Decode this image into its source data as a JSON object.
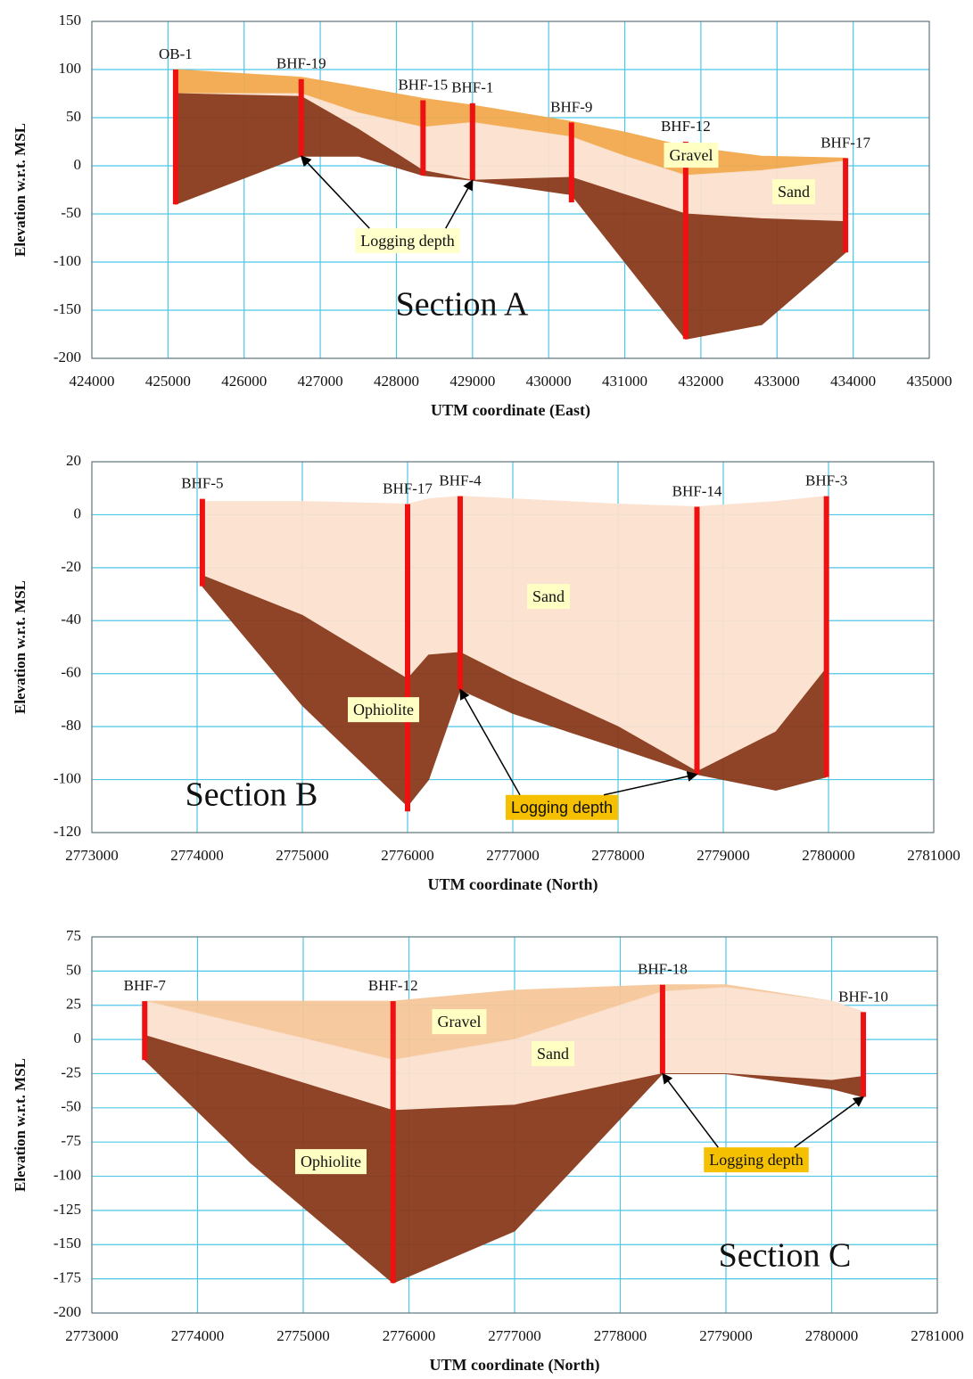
{
  "chart_data": [
    {
      "type": "section",
      "title": "Section A",
      "xlabel": "UTM coordinate (East)",
      "ylabel": "Elevation w.r.t. MSL",
      "xlim": [
        424000,
        435000
      ],
      "ylim": [
        -200,
        150
      ],
      "xticks": [
        424000,
        425000,
        426000,
        427000,
        428000,
        429000,
        430000,
        431000,
        432000,
        433000,
        434000,
        435000
      ],
      "yticks": [
        150,
        100,
        50,
        0,
        -50,
        -100,
        -150,
        -200
      ],
      "grid": true,
      "boreholes": {
        "color": "#ee1111",
        "names": [
          "OB-1",
          "BHF-19",
          "BHF-15",
          "BHF-1",
          "BHF-9",
          "BHF-12",
          "BHF-17"
        ],
        "x": [
          425100,
          426750,
          428350,
          429000,
          430300,
          431800,
          433900
        ],
        "top": [
          100,
          90,
          68,
          65,
          45,
          25,
          8
        ],
        "bottom": [
          -40,
          10,
          -10,
          -15,
          -38,
          -180,
          -90
        ]
      },
      "layers": [
        {
          "label": "Gravel",
          "color": "#f2a94e",
          "x": [
            425100,
            426750,
            427500,
            428350,
            429000,
            430300,
            431000,
            431800,
            432800,
            433900
          ],
          "top": [
            100,
            92,
            82,
            70,
            63,
            46,
            35,
            20,
            10,
            8
          ],
          "bottom": [
            75,
            75,
            55,
            40,
            45,
            30,
            10,
            -10,
            -5,
            5
          ]
        },
        {
          "label": "Sand",
          "color": "#fbe1cf",
          "x": [
            425100,
            426750,
            427500,
            428350,
            429000,
            430300,
            431000,
            431800,
            432800,
            433900
          ],
          "top": [
            75,
            75,
            55,
            40,
            45,
            30,
            10,
            -10,
            -5,
            5
          ],
          "bottom": [
            75,
            72,
            38,
            -5,
            -15,
            -12,
            -30,
            -50,
            -55,
            -58
          ]
        },
        {
          "color": "#8a3a1c",
          "x": [
            425100,
            426750,
            427500,
            428350,
            429000,
            430300,
            431000,
            431800,
            432800,
            433900
          ],
          "top": [
            75,
            72,
            38,
            -5,
            -15,
            -12,
            -30,
            -50,
            -55,
            -58
          ],
          "bottom": [
            -40,
            10,
            10,
            -10,
            -15,
            -30,
            -100,
            -180,
            -165,
            -90
          ]
        }
      ],
      "note": "Logging depth"
    },
    {
      "type": "section",
      "title": "Section B",
      "xlabel": "UTM coordinate (North)",
      "ylabel": "Elevation w.r.t. MSL",
      "xlim": [
        2773000,
        2781000
      ],
      "ylim": [
        -120,
        20
      ],
      "xticks": [
        2773000,
        2774000,
        2775000,
        2776000,
        2777000,
        2778000,
        2779000,
        2780000,
        2781000
      ],
      "yticks": [
        20,
        0,
        -20,
        -40,
        -60,
        -80,
        -100,
        -120
      ],
      "grid": true,
      "boreholes": {
        "color": "#ee1111",
        "names": [
          "BHF-5",
          "BHF-17",
          "BHF-4",
          "BHF-14",
          "BHF-3"
        ],
        "x": [
          2774050,
          2776000,
          2776500,
          2778750,
          2779980
        ],
        "top": [
          6,
          4,
          7,
          3,
          7
        ],
        "bottom": [
          -27,
          -112,
          -66,
          -98,
          -99
        ]
      },
      "layers": [
        {
          "label": "Sand",
          "color": "#fbe1cf",
          "x": [
            2774050,
            2775000,
            2776000,
            2776200,
            2776500,
            2777000,
            2778000,
            2778750,
            2779500,
            2779980
          ],
          "top": [
            5,
            5,
            4,
            6,
            7,
            6,
            4,
            3,
            5,
            7
          ],
          "bottom": [
            -23,
            -38,
            -62,
            -53,
            -52,
            -62,
            -80,
            -97,
            -82,
            -58
          ]
        },
        {
          "label": "Ophiolite",
          "color": "#8a3a1c",
          "x": [
            2774050,
            2775000,
            2776000,
            2776200,
            2776500,
            2777000,
            2778000,
            2778750,
            2779500,
            2779980
          ],
          "top": [
            -23,
            -38,
            -62,
            -53,
            -52,
            -62,
            -80,
            -97,
            -82,
            -58
          ],
          "bottom": [
            -27,
            -72,
            -110,
            -100,
            -66,
            -75,
            -88,
            -98,
            -104,
            -99
          ]
        }
      ],
      "note": "Logging depth"
    },
    {
      "type": "section",
      "title": "Section C",
      "xlabel": "UTM coordinate (North)",
      "ylabel": "Elevation w.r.t. MSL",
      "xlim": [
        2773000,
        2781000
      ],
      "ylim": [
        -200,
        75
      ],
      "xticks": [
        2773000,
        2774000,
        2775000,
        2776000,
        2777000,
        2778000,
        2779000,
        2780000,
        2781000
      ],
      "yticks": [
        75,
        50,
        25,
        0,
        -25,
        -50,
        -75,
        -100,
        -125,
        -150,
        -175,
        -200
      ],
      "grid": true,
      "boreholes": {
        "color": "#ee1111",
        "names": [
          "BHF-7",
          "BHF-12",
          "BHF-18",
          "BHF-10"
        ],
        "x": [
          2773500,
          2775850,
          2778400,
          2780300
        ],
        "top": [
          28,
          28,
          40,
          20
        ],
        "bottom": [
          -15,
          -178,
          -25,
          -42
        ]
      },
      "layers": [
        {
          "label": "Gravel",
          "color": "#f6c79a",
          "x": [
            2773500,
            2774500,
            2775850,
            2777000,
            2778400,
            2779000,
            2780000,
            2780300
          ],
          "top": [
            28,
            28,
            28,
            36,
            40,
            40,
            28,
            20
          ],
          "bottom": [
            28,
            10,
            -15,
            0,
            35,
            38,
            28,
            20
          ]
        },
        {
          "label": "Sand",
          "color": "#fbe1cf",
          "x": [
            2773500,
            2774500,
            2775850,
            2777000,
            2778400,
            2779000,
            2780000,
            2780300
          ],
          "top": [
            28,
            10,
            -15,
            0,
            35,
            38,
            28,
            20
          ],
          "bottom": [
            3,
            -20,
            -52,
            -48,
            -25,
            -25,
            -30,
            -27
          ]
        },
        {
          "label": "Ophiolite",
          "color": "#8a3a1c",
          "x": [
            2773500,
            2774500,
            2775850,
            2777000,
            2778400,
            2779000,
            2780000,
            2780300
          ],
          "top": [
            3,
            -20,
            -52,
            -48,
            -25,
            -25,
            -30,
            -27
          ],
          "bottom": [
            -15,
            -90,
            -178,
            -140,
            -25,
            -25,
            -36,
            -42
          ]
        }
      ],
      "note": "Logging depth"
    }
  ]
}
